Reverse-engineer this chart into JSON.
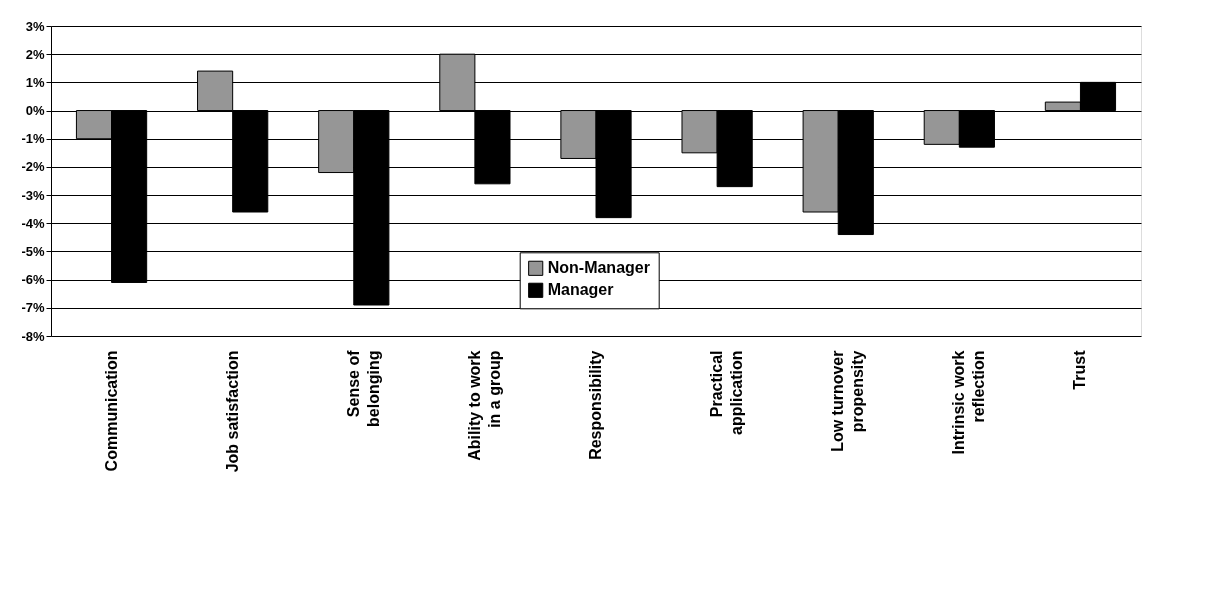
{
  "chart_data": {
    "type": "bar",
    "categories": [
      "Communication",
      "Job satisfaction",
      "Sense of\nbelonging",
      "Ability to work\nin a group",
      "Responsibility",
      "Practical\napplication",
      "Low turnover\npropensity",
      "Intrinsic work\nreflection",
      "Trust"
    ],
    "series": [
      {
        "name": "Non-Manager",
        "color": "#969696",
        "values": [
          -1.0,
          1.4,
          -2.2,
          2.0,
          -1.7,
          -1.5,
          -3.6,
          -1.2,
          0.3
        ]
      },
      {
        "name": "Manager",
        "color": "#000000",
        "values": [
          -6.1,
          -3.6,
          -6.9,
          -2.6,
          -3.8,
          -2.7,
          -4.4,
          -1.3,
          1.0
        ]
      }
    ],
    "ylim": [
      -8,
      3
    ],
    "yticks": [
      {
        "value": 3,
        "label": "3%"
      },
      {
        "value": 2,
        "label": "2%"
      },
      {
        "value": 1,
        "label": "1%"
      },
      {
        "value": 0,
        "label": "0%"
      },
      {
        "value": -1,
        "label": "-1%"
      },
      {
        "value": -2,
        "label": "-2%"
      },
      {
        "value": -3,
        "label": "-3%"
      },
      {
        "value": -4,
        "label": "-4%"
      },
      {
        "value": -5,
        "label": "-5%"
      },
      {
        "value": -6,
        "label": "-6%"
      },
      {
        "value": -7,
        "label": "-7%"
      },
      {
        "value": -8,
        "label": "-8%"
      }
    ],
    "grid": "y",
    "legend": "bottom"
  }
}
